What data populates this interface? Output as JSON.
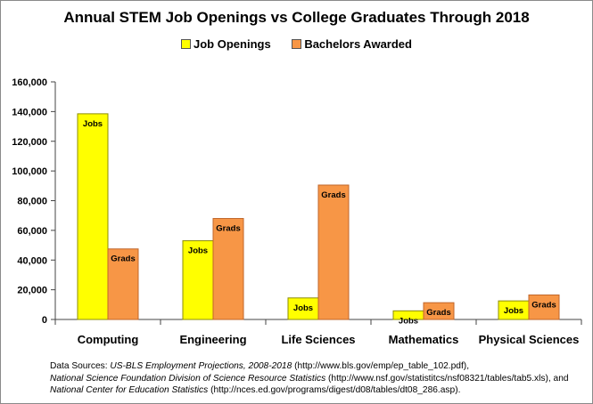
{
  "colors": {
    "jobs": "#ffff00",
    "grads": "#f79646",
    "jobs_border": "#8c8c00",
    "grads_border": "#c0662a",
    "axis": "#444444"
  },
  "chart_data": {
    "type": "bar",
    "title": "Annual STEM Job Openings vs College Graduates Through 2018",
    "categories": [
      "Computing",
      "Engineering",
      "Life Sciences",
      "Mathematics",
      "Physical Sciences"
    ],
    "series": [
      {
        "name": "Job Openings",
        "bar_label": "Jobs",
        "values": [
          138500,
          53000,
          14500,
          5800,
          12500
        ]
      },
      {
        "name": "Bachelors Awarded",
        "bar_label": "Grads",
        "values": [
          47500,
          68000,
          90500,
          11300,
          16500
        ]
      }
    ],
    "yticks": [
      "0",
      "20,000",
      "40,000",
      "60,000",
      "80,000",
      "100,000",
      "120,000",
      "140,000",
      "160,000"
    ],
    "ylim": [
      0,
      160000
    ],
    "xlabel": "",
    "ylabel": "",
    "grid": false,
    "legend_position": "top"
  },
  "sources": {
    "prefix": "Data Sources: ",
    "line1_italic": "US-BLS Employment Projections, 2008-2018",
    "line1_rest": " (http://www.bls.gov/emp/ep_table_102.pdf),",
    "line2_italic": "National Science Foundation Division of Science Resource Statistics",
    "line2_rest": " (http://www.nsf.gov/statistitcs/nsf08321/tables/tab5.xls), and",
    "line3_italic": "National Center for Education Statistics",
    "line3_rest": " (http://nces.ed.gov/programs/digest/d08/tables/dt08_286.asp)."
  }
}
